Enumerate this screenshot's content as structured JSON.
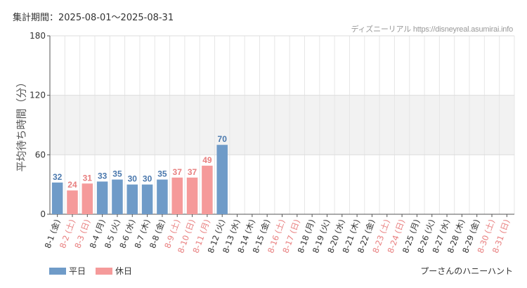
{
  "header": {
    "period_label": "集計期間：2025-08-01〜2025-08-31",
    "credit": "ディズニーリアル https://disneyreal.asumirai.info"
  },
  "legend": {
    "weekday_label": "平日",
    "holiday_label": "休日"
  },
  "footer": {
    "attraction_name": "プーさんのハニーハント"
  },
  "colors": {
    "weekday": "#6f9bc8",
    "holiday": "#f59a9a",
    "weekday_text": "#4a78ad",
    "holiday_text": "#e87f7f",
    "band": "#f2f2f2"
  },
  "chart_data": {
    "type": "bar",
    "title": "",
    "xlabel": "",
    "ylabel": "平均待ち時間（分）",
    "ylim": [
      0,
      180
    ],
    "yticks": [
      0,
      60,
      120,
      180
    ],
    "categories": [
      "8-1 (金)",
      "8-2 (土)",
      "8-3 (日)",
      "8-4 (月)",
      "8-5 (火)",
      "8-6 (水)",
      "8-7 (木)",
      "8-8 (金)",
      "8-9 (土)",
      "8-10 (日)",
      "8-11 (月)",
      "8-12 (火)",
      "8-13 (水)",
      "8-14 (木)",
      "8-15 (金)",
      "8-16 (土)",
      "8-17 (日)",
      "8-18 (月)",
      "8-19 (火)",
      "8-20 (水)",
      "8-21 (木)",
      "8-22 (金)",
      "8-23 (土)",
      "8-24 (日)",
      "8-25 (月)",
      "8-26 (火)",
      "8-27 (水)",
      "8-28 (木)",
      "8-29 (金)",
      "8-30 (土)",
      "8-31 (日)"
    ],
    "values": [
      32,
      24,
      31,
      33,
      35,
      30,
      30,
      35,
      37,
      37,
      49,
      70,
      null,
      null,
      null,
      null,
      null,
      null,
      null,
      null,
      null,
      null,
      null,
      null,
      null,
      null,
      null,
      null,
      null,
      null,
      null
    ],
    "day_type": [
      "weekday",
      "holiday",
      "holiday",
      "weekday",
      "weekday",
      "weekday",
      "weekday",
      "weekday",
      "holiday",
      "holiday",
      "holiday",
      "weekday",
      "weekday",
      "weekday",
      "weekday",
      "holiday",
      "holiday",
      "weekday",
      "weekday",
      "weekday",
      "weekday",
      "weekday",
      "holiday",
      "holiday",
      "weekday",
      "weekday",
      "weekday",
      "weekday",
      "weekday",
      "holiday",
      "holiday"
    ],
    "band_range": [
      60,
      120
    ]
  }
}
